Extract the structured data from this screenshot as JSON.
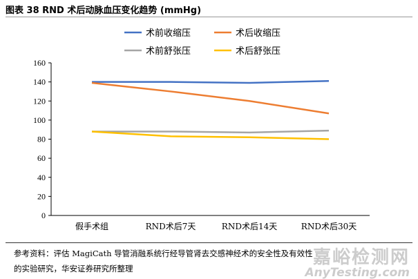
{
  "title": "图表 38 RND 术后动脉血压变化趋势 (mmHg)",
  "source": "参考资料：评估 MagiCath 导管消融系统行经导管肾去交感神经术的安全性及有效性的实验研究，华安证券研究所整理",
  "watermark": {
    "cn": "嘉峪检测网",
    "en": "AnyTesting.com"
  },
  "chart_data": {
    "type": "line",
    "categories": [
      "假手术组",
      "RND术后7天",
      "RND术后14天",
      "RND术后30天"
    ],
    "ylim": [
      0,
      160
    ],
    "yticks": [
      0,
      20,
      40,
      60,
      80,
      100,
      120,
      140,
      160
    ],
    "legend_position": "top",
    "series": [
      {
        "name": "术前收缩压",
        "color": "#4472C4",
        "values": [
          140,
          140,
          139,
          141
        ]
      },
      {
        "name": "术后收缩压",
        "color": "#ED7D31",
        "values": [
          139,
          130,
          120,
          107
        ]
      },
      {
        "name": "术前舒张压",
        "color": "#A5A5A5",
        "values": [
          88,
          88,
          87,
          89
        ]
      },
      {
        "name": "术后舒张压",
        "color": "#FFC000",
        "values": [
          88,
          83,
          82,
          80
        ]
      }
    ]
  }
}
